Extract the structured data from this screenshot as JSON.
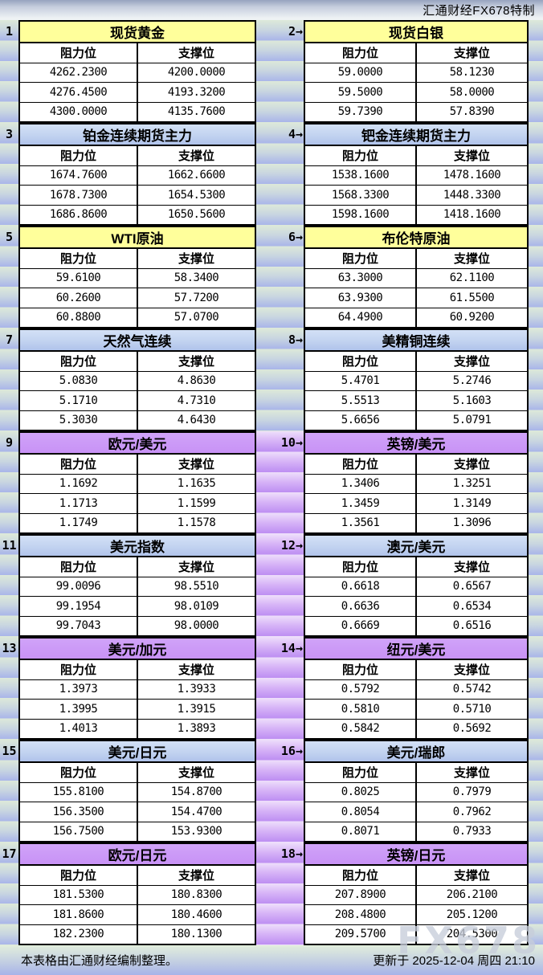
{
  "header": {
    "brand": "汇通财经FX678特制"
  },
  "columns": {
    "resistance": "阻力位",
    "support": "支撑位"
  },
  "sections": [
    {
      "num_label": "1",
      "title": "现货黄金",
      "theme": "yellow",
      "rows": [
        [
          "4262.2300",
          "4200.0000"
        ],
        [
          "4276.4500",
          "4193.3200"
        ],
        [
          "4300.0000",
          "4135.7600"
        ]
      ]
    },
    {
      "num_label": "2→",
      "title": "现货白银",
      "theme": "yellow",
      "rows": [
        [
          "59.0000",
          "58.1230"
        ],
        [
          "59.5000",
          "58.0000"
        ],
        [
          "59.7390",
          "57.8390"
        ]
      ]
    },
    {
      "num_label": "3",
      "title": "铂金连续期货主力",
      "theme": "blue",
      "rows": [
        [
          "1674.7600",
          "1662.6600"
        ],
        [
          "1678.7300",
          "1654.5300"
        ],
        [
          "1686.8600",
          "1650.5600"
        ]
      ]
    },
    {
      "num_label": "4→",
      "title": "钯金连续期货主力",
      "theme": "blue",
      "rows": [
        [
          "1538.1600",
          "1478.1600"
        ],
        [
          "1568.3300",
          "1448.3300"
        ],
        [
          "1598.1600",
          "1418.1600"
        ]
      ]
    },
    {
      "num_label": "5",
      "title": "WTI原油",
      "theme": "yellow",
      "rows": [
        [
          "59.6100",
          "58.3400"
        ],
        [
          "60.2600",
          "57.7200"
        ],
        [
          "60.8800",
          "57.0700"
        ]
      ]
    },
    {
      "num_label": "6→",
      "title": "布伦特原油",
      "theme": "yellow",
      "rows": [
        [
          "63.3000",
          "62.1100"
        ],
        [
          "63.9300",
          "61.5500"
        ],
        [
          "64.4900",
          "60.9200"
        ]
      ]
    },
    {
      "num_label": "7",
      "title": "天然气连续",
      "theme": "blue",
      "rows": [
        [
          "5.0830",
          "4.8630"
        ],
        [
          "5.1710",
          "4.7310"
        ],
        [
          "5.3030",
          "4.6430"
        ]
      ]
    },
    {
      "num_label": "8→",
      "title": "美精铜连续",
      "theme": "blue",
      "rows": [
        [
          "5.4701",
          "5.2746"
        ],
        [
          "5.5513",
          "5.1603"
        ],
        [
          "5.6656",
          "5.0791"
        ]
      ]
    },
    {
      "num_label": "9",
      "title": "欧元/美元",
      "theme": "purple",
      "rows": [
        [
          "1.1692",
          "1.1635"
        ],
        [
          "1.1713",
          "1.1599"
        ],
        [
          "1.1749",
          "1.1578"
        ]
      ]
    },
    {
      "num_label": "10→",
      "title": "英镑/美元",
      "theme": "purple",
      "rows": [
        [
          "1.3406",
          "1.3251"
        ],
        [
          "1.3459",
          "1.3149"
        ],
        [
          "1.3561",
          "1.3096"
        ]
      ]
    },
    {
      "num_label": "11",
      "title": "美元指数",
      "theme": "blue",
      "rows": [
        [
          "99.0096",
          "98.5510"
        ],
        [
          "99.1954",
          "98.0109"
        ],
        [
          "99.7043",
          "98.0000"
        ]
      ]
    },
    {
      "num_label": "12→",
      "title": "澳元/美元",
      "theme": "blue",
      "rows": [
        [
          "0.6618",
          "0.6567"
        ],
        [
          "0.6636",
          "0.6534"
        ],
        [
          "0.6669",
          "0.6516"
        ]
      ]
    },
    {
      "num_label": "13",
      "title": "美元/加元",
      "theme": "purple",
      "rows": [
        [
          "1.3973",
          "1.3933"
        ],
        [
          "1.3995",
          "1.3915"
        ],
        [
          "1.4013",
          "1.3893"
        ]
      ]
    },
    {
      "num_label": "14→",
      "title": "纽元/美元",
      "theme": "purple",
      "rows": [
        [
          "0.5792",
          "0.5742"
        ],
        [
          "0.5810",
          "0.5710"
        ],
        [
          "0.5842",
          "0.5692"
        ]
      ]
    },
    {
      "num_label": "15",
      "title": "美元/日元",
      "theme": "blue",
      "rows": [
        [
          "155.8100",
          "154.8700"
        ],
        [
          "156.3500",
          "154.4700"
        ],
        [
          "156.7500",
          "153.9300"
        ]
      ]
    },
    {
      "num_label": "16→",
      "title": "美元/瑞郎",
      "theme": "blue",
      "rows": [
        [
          "0.8025",
          "0.7979"
        ],
        [
          "0.8054",
          "0.7962"
        ],
        [
          "0.8071",
          "0.7933"
        ]
      ]
    },
    {
      "num_label": "17",
      "title": "欧元/日元",
      "theme": "purple",
      "rows": [
        [
          "181.5300",
          "180.8300"
        ],
        [
          "181.8600",
          "180.4600"
        ],
        [
          "182.2300",
          "180.1300"
        ]
      ]
    },
    {
      "num_label": "18→",
      "title": "英镑/日元",
      "theme": "purple",
      "rows": [
        [
          "207.8900",
          "206.2100"
        ],
        [
          "208.4800",
          "205.1200"
        ],
        [
          "209.5700",
          "204.5300"
        ]
      ]
    }
  ],
  "footer": {
    "note": "本表格由汇通财经编制整理。",
    "updated": "更新于 2025-12-04 周四 21:10",
    "watermark": "FX678"
  },
  "colors": {
    "title_yellow": "#ffff9b",
    "title_blue": "#b8cbee",
    "title_purple": "#c892f6",
    "stripe_green": "#dde9d9",
    "stripe_blue": "#a9b5e9",
    "stripe_purple": "#bd8ef2"
  }
}
